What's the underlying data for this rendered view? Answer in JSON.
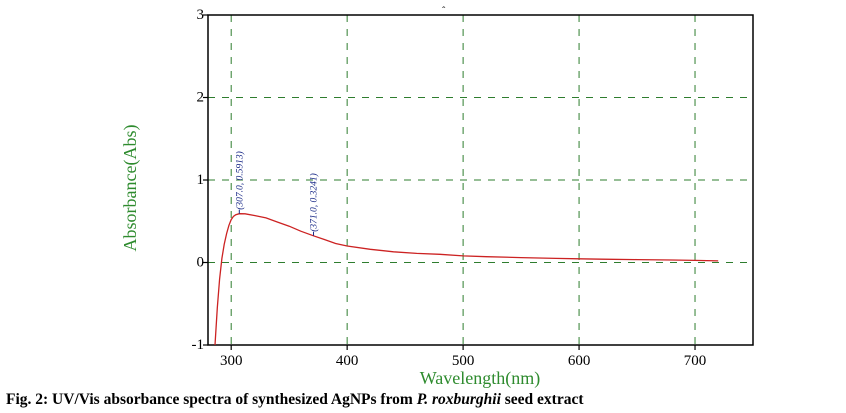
{
  "caption": {
    "prefix": "Fig. 2: UV/Vis absorbance spectra of synthesized AgNPs from ",
    "species": "P. roxburghii",
    "suffix": " seed extract"
  },
  "colors": {
    "axis_title": "#2e8b2e",
    "ticks": "#000000",
    "curve": "#cc2222",
    "grid": "#2e7d2e",
    "annotation": "#1a2a88"
  },
  "chart_data": {
    "type": "line",
    "xlabel": "Wavelength(nm)",
    "ylabel": "Absorbance(Abs)",
    "xlim": [
      280,
      750
    ],
    "ylim": [
      -1,
      3
    ],
    "x_ticks": [
      300,
      400,
      500,
      600,
      700
    ],
    "y_ticks": [
      -1,
      0,
      1,
      2,
      3
    ],
    "grid": true,
    "series": [
      {
        "x": [
          286,
          288,
          290,
          292,
          294,
          296,
          298,
          300,
          302,
          304,
          307,
          312,
          320,
          330,
          340,
          350,
          360,
          371,
          380,
          390,
          400,
          420,
          440,
          460,
          480,
          500,
          520,
          550,
          580,
          600,
          620,
          650,
          680,
          700,
          720
        ],
        "values": [
          -1.0,
          -0.55,
          -0.2,
          0.05,
          0.22,
          0.35,
          0.45,
          0.52,
          0.56,
          0.58,
          0.5913,
          0.59,
          0.57,
          0.54,
          0.49,
          0.44,
          0.38,
          0.3241,
          0.28,
          0.23,
          0.2,
          0.16,
          0.13,
          0.11,
          0.1,
          0.08,
          0.07,
          0.06,
          0.05,
          0.045,
          0.04,
          0.035,
          0.03,
          0.025,
          0.02
        ]
      }
    ],
    "annotations": [
      {
        "x": 307,
        "y": 0.5913,
        "text": "(307.0, 0.5913)"
      },
      {
        "x": 371,
        "y": 0.3241,
        "text": "(371.0, 0.3241)"
      }
    ]
  }
}
